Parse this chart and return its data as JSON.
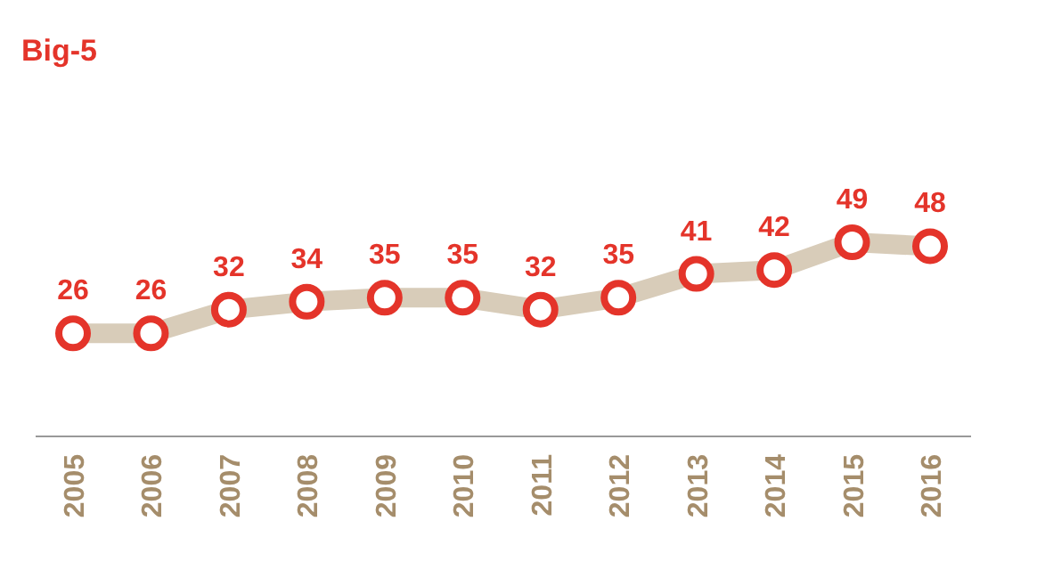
{
  "chart_data": {
    "type": "line",
    "title": "Big-5",
    "categories": [
      "2005",
      "2006",
      "2007",
      "2008",
      "2009",
      "2010",
      "2011",
      "2012",
      "2013",
      "2014",
      "2015",
      "2016"
    ],
    "series": [
      {
        "color": "#d8ccb9",
        "values": [
          26,
          26,
          32,
          34,
          35,
          35,
          32,
          35,
          41,
          42,
          49,
          48
        ]
      }
    ],
    "data_labels": true,
    "marker": "circle"
  }
}
